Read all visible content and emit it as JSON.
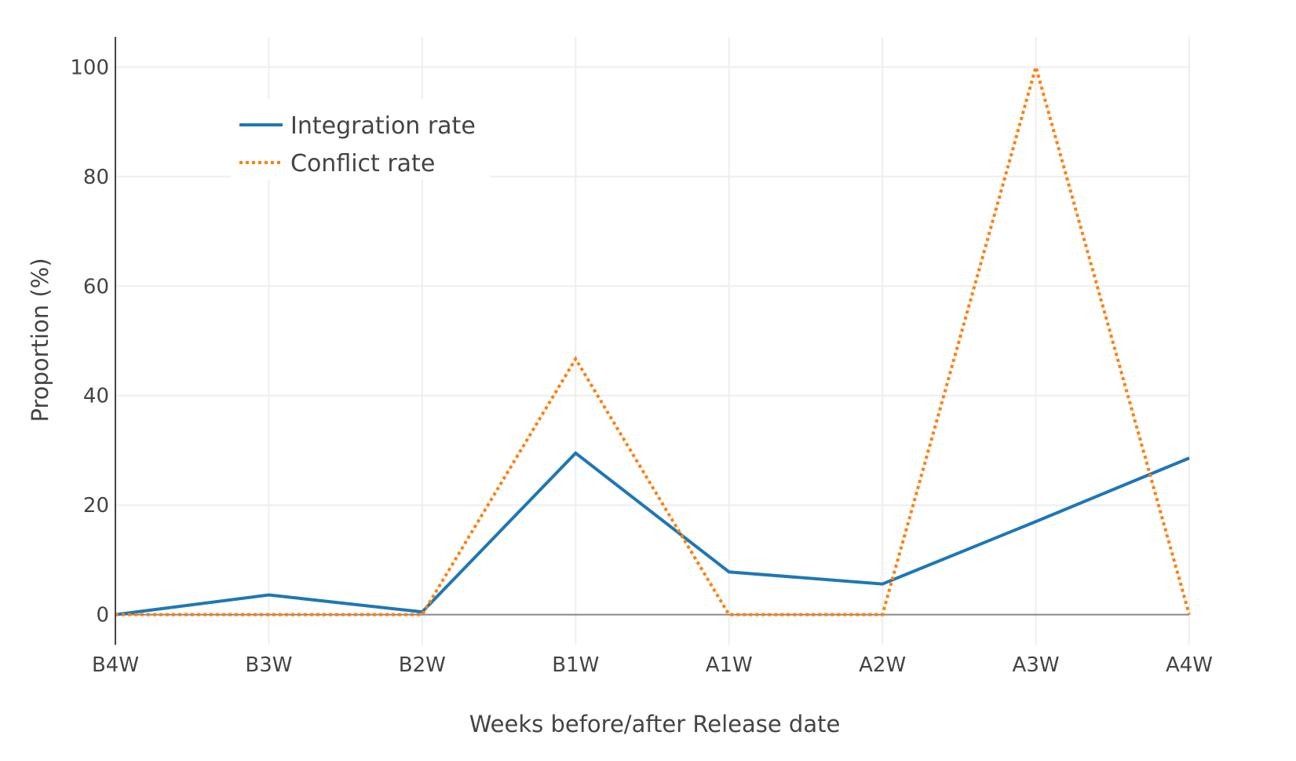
{
  "chart_data": {
    "type": "line",
    "categories": [
      "B4W",
      "B3W",
      "B2W",
      "B1W",
      "A1W",
      "A2W",
      "A3W",
      "A4W"
    ],
    "series": [
      {
        "name": "Integration rate",
        "values": [
          0,
          3.6,
          0.5,
          29.5,
          7.8,
          5.6,
          17,
          28.6
        ],
        "color": "#1f77b4",
        "style": "solid"
      },
      {
        "name": "Conflict rate",
        "values": [
          0,
          0,
          0,
          46.7,
          0,
          0,
          100,
          0
        ],
        "color": "#ff7f0e",
        "style": "dotted"
      }
    ],
    "title": "",
    "xlabel": "Weeks before/after Release date",
    "ylabel": "Proportion (%)",
    "ylim": [
      -5.5,
      105.5
    ],
    "yticks": [
      0,
      20,
      40,
      60,
      80,
      100
    ],
    "grid": true,
    "legend_position": "top-left"
  }
}
